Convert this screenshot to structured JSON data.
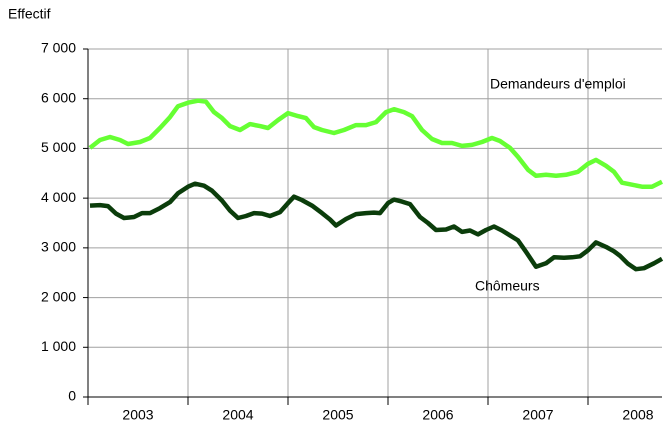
{
  "chart_data": {
    "type": "line",
    "ylabel": "Effectif",
    "xlim": [
      2003,
      2008.74
    ],
    "xticks": [
      2003,
      2004,
      2005,
      2006,
      2007,
      2008
    ],
    "ylim": [
      0,
      7000
    ],
    "yticks": [
      0,
      {
        "value": 1000,
        "label": "1 000"
      },
      {
        "value": 2000,
        "label": "2 000"
      },
      {
        "value": 3000,
        "label": "3 000"
      },
      {
        "value": 4000,
        "label": "4 000"
      },
      {
        "value": 5000,
        "label": "5 000"
      },
      {
        "value": 6000,
        "label": "6 000"
      },
      {
        "value": 7000,
        "label": "7 000"
      }
    ],
    "grid": true,
    "series": [
      {
        "name": "Demandeurs d'emploi",
        "color": "#66ff33",
        "x": [
          2003.02,
          2003.12,
          2003.22,
          2003.32,
          2003.4,
          2003.52,
          2003.62,
          2003.72,
          2003.82,
          2003.9,
          2004.0,
          2004.1,
          2004.18,
          2004.26,
          2004.34,
          2004.42,
          2004.52,
          2004.62,
          2004.72,
          2004.8,
          2004.9,
          2005.0,
          2005.1,
          2005.18,
          2005.26,
          2005.34,
          2005.46,
          2005.56,
          2005.68,
          2005.78,
          2005.88,
          2005.98,
          2006.06,
          2006.16,
          2006.24,
          2006.34,
          2006.44,
          2006.54,
          2006.64,
          2006.74,
          2006.84,
          2006.94,
          2007.04,
          2007.12,
          2007.22,
          2007.3,
          2007.4,
          2007.48,
          2007.58,
          2007.68,
          2007.78,
          2007.9,
          2008.0,
          2008.08,
          2008.18,
          2008.26,
          2008.34,
          2008.44,
          2008.54,
          2008.64,
          2008.74
        ],
        "values": [
          5010,
          5170,
          5230,
          5170,
          5090,
          5130,
          5210,
          5410,
          5630,
          5850,
          5920,
          5960,
          5940,
          5730,
          5610,
          5450,
          5370,
          5490,
          5450,
          5410,
          5570,
          5710,
          5650,
          5610,
          5430,
          5370,
          5310,
          5370,
          5470,
          5470,
          5530,
          5730,
          5790,
          5730,
          5650,
          5370,
          5190,
          5110,
          5110,
          5050,
          5070,
          5130,
          5210,
          5150,
          5010,
          4830,
          4570,
          4450,
          4470,
          4450,
          4470,
          4530,
          4690,
          4770,
          4650,
          4530,
          4310,
          4270,
          4230,
          4230,
          4330
        ]
      },
      {
        "name": "Chômeurs",
        "color": "#0b3d0b",
        "x": [
          2003.02,
          2003.12,
          2003.2,
          2003.28,
          2003.36,
          2003.46,
          2003.54,
          2003.62,
          2003.72,
          2003.82,
          2003.9,
          2004.0,
          2004.07,
          2004.16,
          2004.24,
          2004.34,
          2004.42,
          2004.5,
          2004.58,
          2004.66,
          2004.74,
          2004.82,
          2004.92,
          2005.0,
          2005.06,
          2005.14,
          2005.24,
          2005.34,
          2005.42,
          2005.48,
          2005.58,
          2005.68,
          2005.78,
          2005.86,
          2005.92,
          2006.0,
          2006.06,
          2006.14,
          2006.22,
          2006.32,
          2006.4,
          2006.48,
          2006.58,
          2006.66,
          2006.74,
          2006.82,
          2006.9,
          2006.98,
          2007.06,
          2007.14,
          2007.22,
          2007.3,
          2007.38,
          2007.48,
          2007.58,
          2007.66,
          2007.76,
          2007.84,
          2007.92,
          2008.0,
          2008.08,
          2008.18,
          2008.26,
          2008.32,
          2008.4,
          2008.48,
          2008.56,
          2008.66,
          2008.74
        ],
        "values": [
          3850,
          3860,
          3840,
          3690,
          3600,
          3620,
          3700,
          3700,
          3800,
          3920,
          4100,
          4230,
          4290,
          4250,
          4150,
          3950,
          3750,
          3600,
          3640,
          3700,
          3690,
          3640,
          3720,
          3900,
          4030,
          3960,
          3850,
          3700,
          3570,
          3450,
          3580,
          3680,
          3700,
          3710,
          3700,
          3900,
          3970,
          3930,
          3880,
          3620,
          3500,
          3360,
          3370,
          3430,
          3320,
          3350,
          3270,
          3360,
          3430,
          3350,
          3250,
          3150,
          2920,
          2620,
          2690,
          2810,
          2800,
          2810,
          2830,
          2950,
          3110,
          3020,
          2930,
          2840,
          2680,
          2570,
          2590,
          2690,
          2780
        ]
      }
    ]
  }
}
